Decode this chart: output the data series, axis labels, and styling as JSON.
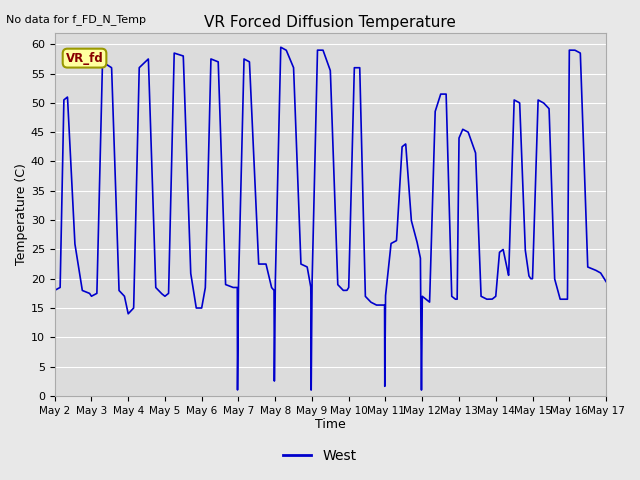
{
  "title": "VR Forced Diffusion Temperature",
  "subtitle": "No data for f_FD_N_Temp",
  "xlabel": "Time",
  "ylabel": "Temperature (C)",
  "ylim": [
    0,
    62
  ],
  "yticks": [
    0,
    5,
    10,
    15,
    20,
    25,
    30,
    35,
    40,
    45,
    50,
    55,
    60
  ],
  "line_color": "#0000cc",
  "line_width": 1.2,
  "bg_color": "#e8e8e8",
  "plot_bg_color": "#dcdcdc",
  "legend_label": "West",
  "annotation_label": "VR_fd",
  "annotation_bg": "#ffffa0",
  "annotation_border": "#999900",
  "annotation_text_color": "#880000",
  "x_tick_labels": [
    "May 2",
    "May 3",
    "May 4",
    "May 5",
    "May 6",
    "May 7",
    "May 8",
    "May 9",
    "May 10",
    "May 11",
    "May 12",
    "May 13",
    "May 14",
    "May 15",
    "May 16",
    "May 17"
  ],
  "total_days": 15.0,
  "key_points_x": [
    0.0,
    0.15,
    0.25,
    0.35,
    0.55,
    0.75,
    0.95,
    1.0,
    1.15,
    1.3,
    1.55,
    1.75,
    1.9,
    2.0,
    2.15,
    2.3,
    2.55,
    2.75,
    2.9,
    3.0,
    3.1,
    3.25,
    3.5,
    3.7,
    3.85,
    4.0,
    4.1,
    4.25,
    4.45,
    4.65,
    4.85,
    4.97,
    4.975,
    5.0,
    5.15,
    5.3,
    5.55,
    5.75,
    5.9,
    5.97,
    5.975,
    6.0,
    6.15,
    6.3,
    6.5,
    6.7,
    6.87,
    6.97,
    6.975,
    6.98,
    7.0,
    7.15,
    7.3,
    7.5,
    7.7,
    7.85,
    7.95,
    8.0,
    8.15,
    8.3,
    8.45,
    8.6,
    8.75,
    8.9,
    8.975,
    8.98,
    9.0,
    9.15,
    9.3,
    9.45,
    9.55,
    9.7,
    9.85,
    9.95,
    9.975,
    9.98,
    10.0,
    10.1,
    10.2,
    10.35,
    10.5,
    10.65,
    10.8,
    10.9,
    10.95,
    11.0,
    11.1,
    11.25,
    11.45,
    11.6,
    11.75,
    11.9,
    12.0,
    12.1,
    12.2,
    12.35,
    12.5,
    12.65,
    12.8,
    12.9,
    12.95,
    13.0,
    13.15,
    13.3,
    13.45,
    13.6,
    13.75,
    13.85,
    13.95,
    14.0,
    14.15,
    14.3,
    14.5,
    14.7,
    14.85,
    14.95,
    15.0
  ],
  "key_points_y": [
    18.0,
    18.5,
    50.5,
    51.0,
    26.0,
    18.0,
    17.5,
    17.0,
    17.5,
    57.0,
    56.0,
    18.0,
    17.0,
    14.0,
    15.0,
    56.0,
    57.5,
    18.5,
    17.5,
    17.0,
    17.5,
    58.5,
    58.0,
    21.0,
    15.0,
    15.0,
    18.5,
    57.5,
    57.0,
    19.0,
    18.5,
    18.5,
    1.0,
    18.5,
    57.5,
    57.0,
    22.5,
    22.5,
    18.5,
    18.0,
    1.0,
    18.5,
    59.5,
    59.0,
    56.0,
    22.5,
    22.0,
    18.5,
    1.0,
    1.0,
    18.5,
    59.0,
    59.0,
    55.5,
    19.0,
    18.0,
    18.0,
    18.5,
    56.0,
    56.0,
    17.0,
    16.0,
    15.5,
    15.5,
    15.5,
    1.0,
    17.0,
    26.0,
    26.5,
    42.5,
    43.0,
    30.0,
    26.5,
    23.5,
    1.0,
    1.0,
    17.0,
    16.5,
    16.0,
    48.5,
    51.5,
    51.5,
    17.0,
    16.5,
    16.5,
    44.0,
    45.5,
    45.0,
    41.5,
    17.0,
    16.5,
    16.5,
    17.0,
    24.5,
    25.0,
    20.5,
    50.5,
    50.0,
    25.0,
    20.5,
    20.0,
    20.0,
    50.5,
    50.0,
    49.0,
    20.0,
    16.5,
    16.5,
    16.5,
    59.0,
    59.0,
    58.5,
    22.0,
    21.5,
    21.0,
    20.0,
    19.5
  ]
}
